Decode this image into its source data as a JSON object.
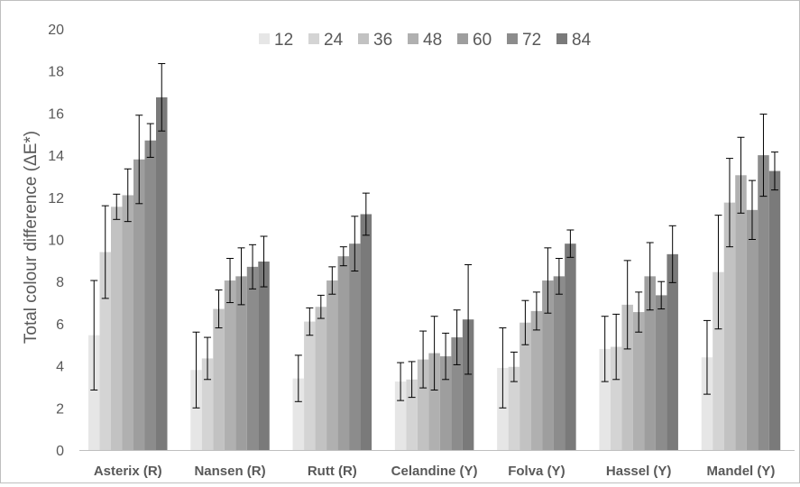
{
  "chart_data": {
    "type": "bar",
    "title": "",
    "xlabel": "",
    "ylabel": "Total colour difference (ΔE*)",
    "ylim": [
      0,
      20
    ],
    "yticks": [
      0,
      2,
      4,
      6,
      8,
      10,
      12,
      14,
      16,
      18,
      20
    ],
    "grid": false,
    "legend_position": "top",
    "categories": [
      "Asterix (R)",
      "Nansen (R)",
      "Rutt (R)",
      "Celandine (Y)",
      "Folva (Y)",
      "Hassel (Y)",
      "Mandel (Y)"
    ],
    "series": [
      {
        "name": "12",
        "color": "#e6e6e6",
        "values": [
          5.45,
          3.8,
          3.4,
          3.25,
          3.9,
          4.8,
          4.4
        ],
        "errors": [
          2.6,
          1.8,
          1.1,
          0.9,
          1.9,
          1.55,
          1.75
        ]
      },
      {
        "name": "24",
        "color": "#d4d4d4",
        "values": [
          9.4,
          4.35,
          6.1,
          3.35,
          3.95,
          4.9,
          8.45
        ],
        "errors": [
          2.2,
          1.0,
          0.65,
          0.85,
          0.7,
          1.55,
          2.7
        ]
      },
      {
        "name": "36",
        "color": "#c2c2c2",
        "values": [
          11.55,
          6.7,
          6.8,
          4.3,
          6.05,
          6.9,
          11.75
        ],
        "errors": [
          0.6,
          0.9,
          0.55,
          1.35,
          1.05,
          2.1,
          2.1
        ]
      },
      {
        "name": "48",
        "color": "#b0b0b0",
        "values": [
          12.1,
          8.05,
          8.05,
          4.6,
          6.6,
          6.55,
          13.05
        ],
        "errors": [
          1.25,
          1.05,
          0.65,
          1.75,
          0.9,
          0.95,
          1.8
        ]
      },
      {
        "name": "60",
        "color": "#9e9e9e",
        "values": [
          13.8,
          8.25,
          9.2,
          4.45,
          8.05,
          8.25,
          11.4
        ],
        "errors": [
          2.1,
          1.35,
          0.45,
          1.1,
          1.55,
          1.6,
          1.4
        ]
      },
      {
        "name": "72",
        "color": "#8c8c8c",
        "values": [
          14.7,
          8.7,
          9.8,
          5.35,
          8.25,
          7.35,
          14.0
        ],
        "errors": [
          0.8,
          1.05,
          1.3,
          1.3,
          0.85,
          0.65,
          1.95
        ]
      },
      {
        "name": "84",
        "color": "#7a7a7a",
        "values": [
          16.75,
          8.95,
          11.2,
          6.2,
          9.8,
          9.3,
          13.25
        ],
        "errors": [
          1.6,
          1.2,
          1.0,
          2.6,
          0.65,
          1.35,
          0.9
        ]
      }
    ],
    "axis_color": "#bfbfbf",
    "error_bar_color": "#000000"
  }
}
